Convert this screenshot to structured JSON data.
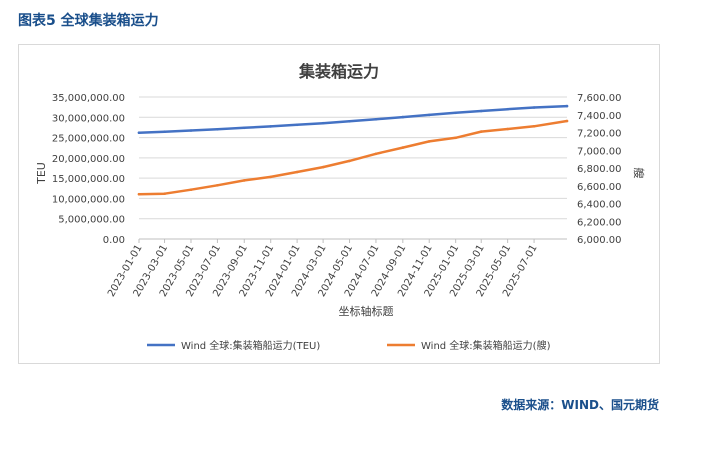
{
  "figure_label": "图表5 全球集装箱运力",
  "source_note": "数据来源：WIND、国元期货",
  "colors": {
    "series1": "#4472c4",
    "series2": "#ed7d31",
    "label": "#1a4f8b"
  },
  "chart_data": {
    "type": "line",
    "title": "集装箱运力",
    "xlabel": "坐标轴标题",
    "ylabel_left": "TEU",
    "ylabel_right": "艘",
    "ylim_left": [
      0,
      35000000
    ],
    "ylim_right": [
      6000,
      7600
    ],
    "x_range": [
      "2023-01-01",
      "2025-09-15"
    ],
    "x_ticks": [
      "2023-01-01",
      "2023-03-01",
      "2023-05-01",
      "2023-07-01",
      "2023-09-01",
      "2023-11-01",
      "2024-01-01",
      "2024-03-01",
      "2024-05-01",
      "2024-07-01",
      "2024-09-01",
      "2024-11-01",
      "2025-01-01",
      "2025-03-01",
      "2025-05-01",
      "2025-07-01"
    ],
    "y_ticks_left": [
      "0.00",
      "5,000,000.00",
      "10,000,000.00",
      "15,000,000.00",
      "20,000,000.00",
      "25,000,000.00",
      "30,000,000.00",
      "35,000,000.00"
    ],
    "y_ticks_right": [
      "6,000.00",
      "6,200.00",
      "6,400.00",
      "6,600.00",
      "6,800.00",
      "7,000.00",
      "7,200.00",
      "7,400.00",
      "7,600.00"
    ],
    "grid": true,
    "legend_position": "bottom",
    "series": [
      {
        "name": "Wind 全球:集装箱船运力(TEU)",
        "axis": "left",
        "x": [
          "2023-01-01",
          "2023-03-01",
          "2023-05-01",
          "2023-07-01",
          "2023-09-01",
          "2023-11-01",
          "2024-01-01",
          "2024-03-01",
          "2024-05-01",
          "2024-07-01",
          "2024-09-01",
          "2024-11-01",
          "2025-01-01",
          "2025-03-01",
          "2025-05-01",
          "2025-07-01",
          "2025-09-15"
        ],
        "values": [
          26200000,
          26450000,
          26750000,
          27050000,
          27400000,
          27750000,
          28150000,
          28550000,
          29000000,
          29500000,
          30050000,
          30600000,
          31100000,
          31550000,
          32000000,
          32400000,
          32750000
        ]
      },
      {
        "name": "Wind 全球:集装箱船运力(艘)",
        "axis": "right",
        "x": [
          "2023-01-01",
          "2023-03-01",
          "2023-05-01",
          "2023-07-01",
          "2023-09-01",
          "2023-11-01",
          "2024-01-01",
          "2024-03-01",
          "2024-05-01",
          "2024-07-01",
          "2024-09-01",
          "2024-11-01",
          "2025-01-01",
          "2025-03-01",
          "2025-05-01",
          "2025-07-01",
          "2025-09-15"
        ],
        "values": [
          6505,
          6510,
          6555,
          6605,
          6660,
          6700,
          6755,
          6810,
          6880,
          6960,
          7030,
          7100,
          7140,
          7210,
          7240,
          7270,
          7330
        ]
      }
    ]
  }
}
